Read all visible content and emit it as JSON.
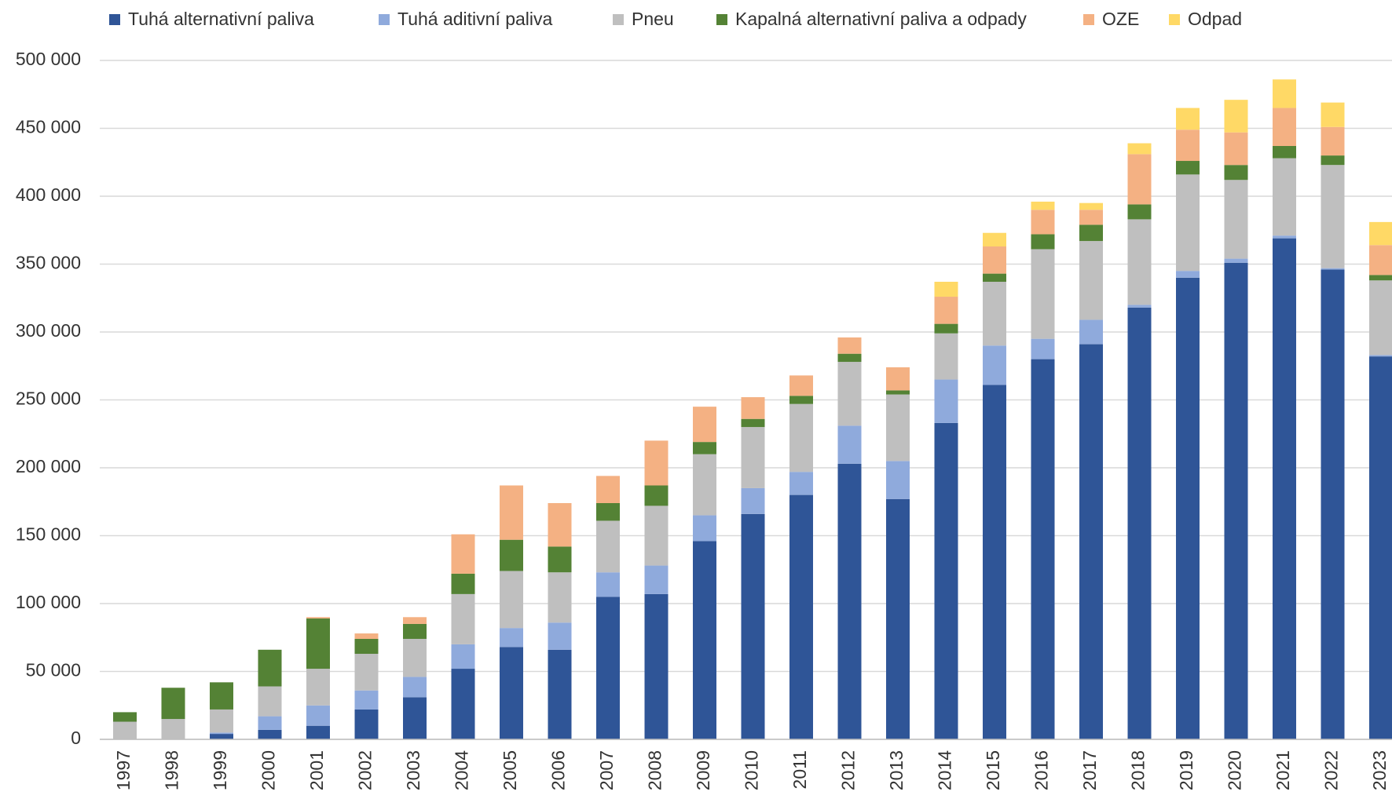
{
  "chart_data": {
    "type": "stacked_bar",
    "categories": [
      "1997",
      "1998",
      "1999",
      "2000",
      "2001",
      "2002",
      "2003",
      "2004",
      "2005",
      "2006",
      "2007",
      "2008",
      "2009",
      "2010",
      "2011",
      "2012",
      "2013",
      "2014",
      "2015",
      "2016",
      "2017",
      "2018",
      "2019",
      "2020",
      "2021",
      "2022",
      "2023"
    ],
    "series": [
      {
        "name": "Tuhá alternativní paliva",
        "color": "#2f5597",
        "values": [
          0,
          0,
          4000,
          7000,
          10000,
          22000,
          31000,
          52000,
          68000,
          66000,
          105000,
          107000,
          146000,
          166000,
          180000,
          203000,
          177000,
          233000,
          261000,
          280000,
          291000,
          318000,
          340000,
          351000,
          369000,
          346000,
          282000
        ]
      },
      {
        "name": "Tuhá aditivní paliva",
        "color": "#8faadc",
        "values": [
          0,
          0,
          1000,
          10000,
          15000,
          14000,
          15000,
          18000,
          14000,
          20000,
          18000,
          21000,
          19000,
          19000,
          17000,
          28000,
          28000,
          32000,
          29000,
          15000,
          18000,
          2000,
          5000,
          3000,
          2000,
          1000,
          1000
        ]
      },
      {
        "name": "Pneu",
        "color": "#bfbfbf",
        "values": [
          13000,
          15000,
          17000,
          22000,
          27000,
          27000,
          28000,
          37000,
          42000,
          37000,
          38000,
          44000,
          45000,
          45000,
          50000,
          47000,
          49000,
          34000,
          47000,
          66000,
          58000,
          63000,
          71000,
          58000,
          57000,
          76000,
          55000
        ]
      },
      {
        "name": "Kapalná alternativní paliva a odpady",
        "color": "#548235",
        "values": [
          7000,
          23000,
          20000,
          27000,
          37000,
          11000,
          11000,
          15000,
          23000,
          19000,
          13000,
          15000,
          9000,
          6000,
          6000,
          6000,
          3000,
          7000,
          6000,
          11000,
          12000,
          11000,
          10000,
          11000,
          9000,
          7000,
          4000
        ]
      },
      {
        "name": "OZE",
        "color": "#f4b183",
        "values": [
          0,
          0,
          0,
          0,
          1000,
          4000,
          5000,
          29000,
          40000,
          32000,
          20000,
          33000,
          26000,
          16000,
          15000,
          12000,
          17000,
          20000,
          20000,
          18000,
          11000,
          37000,
          23000,
          24000,
          28000,
          21000,
          22000
        ]
      },
      {
        "name": "Odpad",
        "color": "#ffd966",
        "values": [
          0,
          0,
          0,
          0,
          0,
          0,
          0,
          0,
          0,
          0,
          0,
          0,
          0,
          0,
          0,
          0,
          0,
          11000,
          10000,
          6000,
          5000,
          8000,
          16000,
          24000,
          21000,
          18000,
          17000
        ]
      }
    ],
    "ylim": [
      0,
      500000
    ],
    "yticks": [
      0,
      {
        "value": 50000,
        "label": "50 000"
      },
      {
        "value": 100000,
        "label": "100 000"
      },
      {
        "value": 150000,
        "label": "150 000"
      },
      {
        "value": 200000,
        "label": "200 000"
      },
      {
        "value": 250000,
        "label": "250 000"
      },
      {
        "value": 300000,
        "label": "300 000"
      },
      {
        "value": 350000,
        "label": "350 000"
      },
      {
        "value": 400000,
        "label": "400 000"
      },
      {
        "value": 450000,
        "label": "450 000"
      },
      {
        "value": 500000,
        "label": "500 000"
      }
    ],
    "grid": true,
    "legend": "top"
  }
}
